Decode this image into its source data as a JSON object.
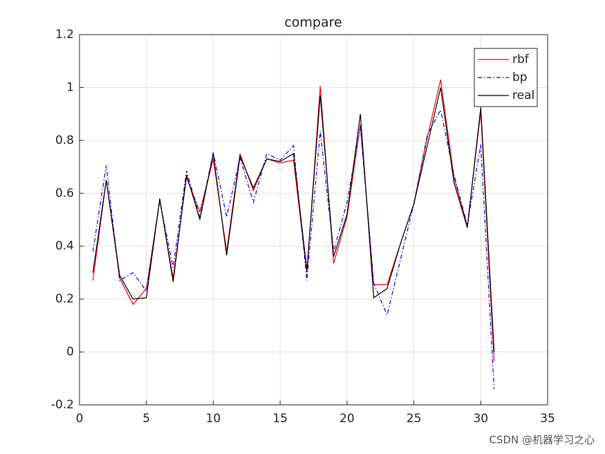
{
  "chart_data": {
    "type": "line",
    "title": "compare",
    "x": [
      1,
      2,
      3,
      4,
      5,
      6,
      7,
      8,
      9,
      10,
      11,
      12,
      13,
      14,
      15,
      16,
      17,
      18,
      19,
      20,
      21,
      22,
      23,
      24,
      25,
      26,
      27,
      28,
      29,
      30,
      31
    ],
    "series": [
      {
        "name": "rbf",
        "color": "#ff0000",
        "dash": "solid",
        "values": [
          0.27,
          0.65,
          0.28,
          0.18,
          0.24,
          0.575,
          0.28,
          0.66,
          0.53,
          0.73,
          0.38,
          0.75,
          0.61,
          0.73,
          0.715,
          0.725,
          0.3,
          1.005,
          0.335,
          0.51,
          0.86,
          0.255,
          0.255,
          0.41,
          0.56,
          0.81,
          1.03,
          0.66,
          0.475,
          0.91,
          -0.035
        ]
      },
      {
        "name": "bp",
        "color": "#0000ff",
        "dash": "dashdot",
        "values": [
          0.38,
          0.705,
          0.27,
          0.3,
          0.23,
          0.57,
          0.32,
          0.685,
          0.51,
          0.755,
          0.51,
          0.735,
          0.565,
          0.75,
          0.725,
          0.78,
          0.27,
          0.835,
          0.38,
          0.565,
          0.85,
          0.26,
          0.14,
          0.35,
          0.56,
          0.82,
          0.915,
          0.67,
          0.48,
          0.785,
          -0.14
        ]
      },
      {
        "name": "real",
        "color": "#000000",
        "dash": "solid",
        "values": [
          0.3,
          0.65,
          0.29,
          0.2,
          0.205,
          0.58,
          0.265,
          0.67,
          0.5,
          0.75,
          0.365,
          0.74,
          0.62,
          0.73,
          0.72,
          0.75,
          0.31,
          0.97,
          0.36,
          0.52,
          0.9,
          0.205,
          0.24,
          0.41,
          0.56,
          0.78,
          1.0,
          0.64,
          0.47,
          0.925,
          0.0
        ]
      }
    ],
    "xlim": [
      0,
      35
    ],
    "xticks": [
      0,
      5,
      10,
      15,
      20,
      25,
      30,
      35
    ],
    "ylim": [
      -0.2,
      1.2
    ],
    "yticks": [
      -0.2,
      0,
      0.2,
      0.4,
      0.6,
      0.8,
      1,
      1.2
    ],
    "grid": true,
    "legend": "northeast"
  },
  "watermark": "CSDN @机器学习之心"
}
